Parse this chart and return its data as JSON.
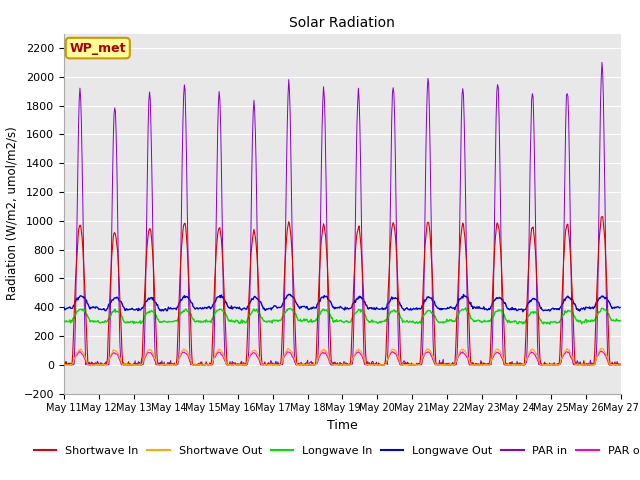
{
  "title": "Solar Radiation",
  "xlabel": "Time",
  "ylabel": "Radiation (W/m2, umol/m2/s)",
  "ylim": [
    -200,
    2300
  ],
  "yticks": [
    -200,
    0,
    200,
    400,
    600,
    800,
    1000,
    1200,
    1400,
    1600,
    1800,
    2000,
    2200
  ],
  "n_days": 16,
  "legend_label": "WP_met",
  "series": {
    "shortwave_in": {
      "color": "#dd0000",
      "label": "Shortwave In"
    },
    "shortwave_out": {
      "color": "#ffaa00",
      "label": "Shortwave Out"
    },
    "longwave_in": {
      "color": "#00dd00",
      "label": "Longwave In"
    },
    "longwave_out": {
      "color": "#0000dd",
      "label": "Longwave Out"
    },
    "par_in": {
      "color": "#8800cc",
      "label": "PAR in"
    },
    "par_out": {
      "color": "#ff00cc",
      "label": "PAR out"
    }
  },
  "background_color": "#e8e8e8",
  "grid_color": "#ffffff",
  "annotation_box_color": "#ffff99",
  "annotation_text_color": "#aa0000",
  "annotation_border_color": "#cc9900",
  "figsize": [
    6.4,
    4.8
  ],
  "dpi": 100
}
